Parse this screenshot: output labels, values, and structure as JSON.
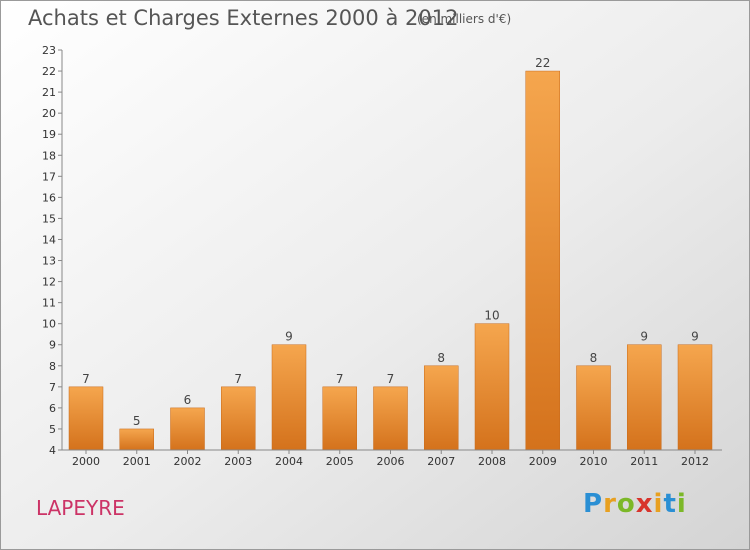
{
  "title": "Achats et Charges Externes 2000 à 2012",
  "subtitle": "(en milliers d'€)",
  "commune": "LAPEYRE",
  "logo": {
    "p": "P",
    "r": "r",
    "o": "o",
    "x": "x",
    "i": "i",
    "t": "t",
    "i2": "i"
  },
  "colors": {
    "bar_light": "#f5a64e",
    "bar_dark": "#d4721c",
    "accent": "#cc3366"
  },
  "chart_data": {
    "type": "bar",
    "categories": [
      "2000",
      "2001",
      "2002",
      "2003",
      "2004",
      "2005",
      "2006",
      "2007",
      "2008",
      "2009",
      "2010",
      "2011",
      "2012"
    ],
    "values": [
      7,
      5,
      6,
      7,
      9,
      7,
      7,
      8,
      10,
      22,
      8,
      9,
      9
    ],
    "ylim": [
      4,
      23
    ],
    "yticks": [
      4,
      5,
      6,
      7,
      8,
      9,
      10,
      11,
      12,
      13,
      14,
      15,
      16,
      17,
      18,
      19,
      20,
      21,
      22,
      23
    ],
    "grid": false
  }
}
